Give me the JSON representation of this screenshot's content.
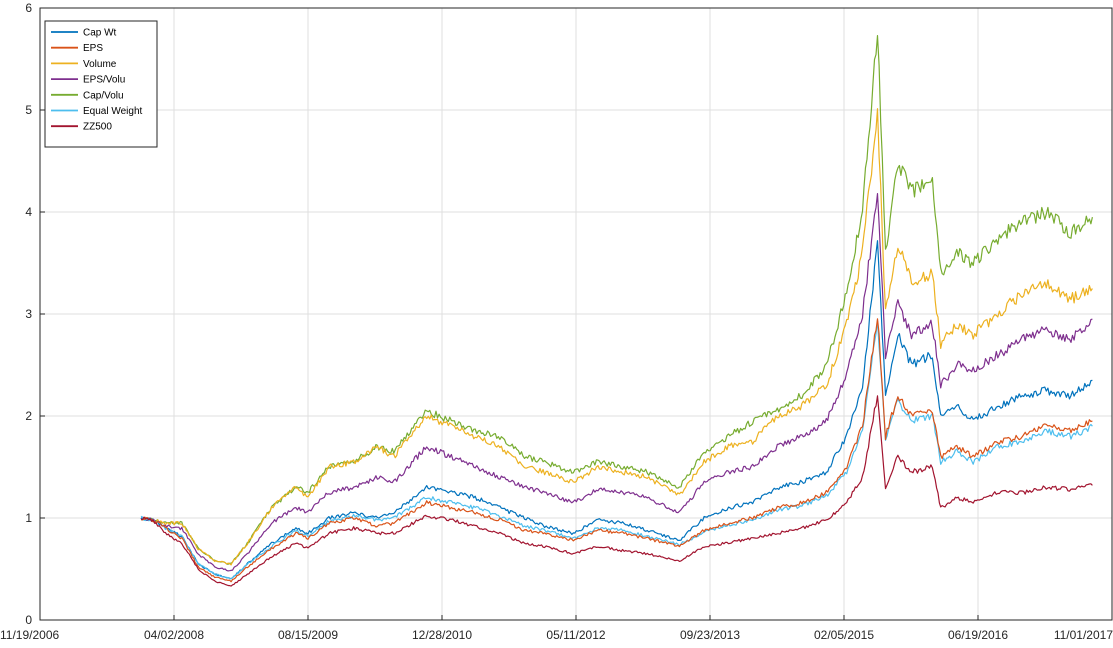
{
  "chart_data": {
    "type": "line",
    "title": "",
    "xlabel": "",
    "ylabel": "",
    "xlim": [
      "2006-11-19",
      "2017-11-01"
    ],
    "ylim": [
      0,
      6
    ],
    "grid": true,
    "legend_position": "top-left",
    "x_tick_labels": [
      "11/19/2006",
      "04/02/2008",
      "08/15/2009",
      "12/28/2010",
      "05/11/2012",
      "09/23/2013",
      "02/05/2015",
      "06/19/2016",
      "11/01/2017"
    ],
    "y_tick_labels": [
      "0",
      "1",
      "2",
      "3",
      "4",
      "5",
      "6"
    ],
    "x": [
      "2007-12-01",
      "2008-01-15",
      "2008-03-01",
      "2008-05-01",
      "2008-07-01",
      "2008-09-01",
      "2008-11-01",
      "2009-01-01",
      "2009-04-01",
      "2009-07-01",
      "2009-08-15",
      "2009-11-01",
      "2010-02-01",
      "2010-05-01",
      "2010-07-01",
      "2010-11-01",
      "2011-02-01",
      "2011-05-01",
      "2011-08-01",
      "2011-11-01",
      "2012-01-15",
      "2012-05-01",
      "2012-08-01",
      "2012-11-01",
      "2013-02-01",
      "2013-06-01",
      "2013-09-01",
      "2013-12-01",
      "2014-03-01",
      "2014-06-01",
      "2014-09-01",
      "2014-12-01",
      "2015-02-15",
      "2015-04-15",
      "2015-06-10",
      "2015-07-10",
      "2015-08-25",
      "2015-10-15",
      "2016-01-01",
      "2016-02-01",
      "2016-04-01",
      "2016-06-01",
      "2016-09-01",
      "2016-12-01",
      "2017-03-01",
      "2017-06-01",
      "2017-08-20"
    ],
    "series": [
      {
        "name": "Cap Wt",
        "color": "#0072BD",
        "values": [
          1.0,
          0.98,
          0.9,
          0.82,
          0.55,
          0.45,
          0.4,
          0.55,
          0.75,
          0.9,
          0.85,
          1.0,
          1.05,
          1.0,
          1.05,
          1.3,
          1.25,
          1.2,
          1.1,
          1.0,
          0.92,
          0.85,
          0.98,
          0.95,
          0.88,
          0.78,
          1.0,
          1.1,
          1.15,
          1.3,
          1.35,
          1.45,
          1.8,
          2.3,
          3.7,
          2.2,
          2.8,
          2.5,
          2.6,
          2.0,
          2.1,
          1.95,
          2.1,
          2.2,
          2.25,
          2.2,
          2.35
        ]
      },
      {
        "name": "EPS",
        "color": "#D95319",
        "values": [
          1.0,
          0.98,
          0.9,
          0.8,
          0.52,
          0.42,
          0.38,
          0.52,
          0.7,
          0.85,
          0.8,
          0.95,
          1.0,
          0.92,
          0.95,
          1.15,
          1.1,
          1.05,
          0.98,
          0.88,
          0.85,
          0.78,
          0.88,
          0.85,
          0.8,
          0.72,
          0.88,
          0.95,
          1.0,
          1.1,
          1.15,
          1.25,
          1.5,
          1.9,
          3.0,
          1.8,
          2.2,
          2.0,
          2.05,
          1.6,
          1.7,
          1.6,
          1.75,
          1.8,
          1.9,
          1.85,
          1.95
        ]
      },
      {
        "name": "Volume",
        "color": "#EDB120",
        "values": [
          1.0,
          0.98,
          0.95,
          0.95,
          0.7,
          0.58,
          0.55,
          0.75,
          1.1,
          1.3,
          1.2,
          1.5,
          1.55,
          1.7,
          1.6,
          2.0,
          1.9,
          1.8,
          1.7,
          1.5,
          1.45,
          1.35,
          1.5,
          1.45,
          1.4,
          1.22,
          1.55,
          1.7,
          1.75,
          2.0,
          2.1,
          2.3,
          2.9,
          3.6,
          5.0,
          3.0,
          3.7,
          3.3,
          3.4,
          2.7,
          2.9,
          2.8,
          3.0,
          3.2,
          3.3,
          3.15,
          3.25
        ]
      },
      {
        "name": "EPS/Volu",
        "color": "#7E2F8E",
        "values": [
          1.0,
          0.98,
          0.92,
          0.9,
          0.65,
          0.52,
          0.48,
          0.65,
          0.95,
          1.1,
          1.05,
          1.25,
          1.3,
          1.4,
          1.35,
          1.7,
          1.6,
          1.5,
          1.4,
          1.3,
          1.25,
          1.15,
          1.28,
          1.25,
          1.2,
          1.05,
          1.35,
          1.45,
          1.5,
          1.7,
          1.8,
          1.95,
          2.4,
          3.0,
          4.2,
          2.6,
          3.1,
          2.8,
          2.9,
          2.3,
          2.5,
          2.45,
          2.6,
          2.75,
          2.85,
          2.75,
          2.95
        ]
      },
      {
        "name": "Cap/Volu",
        "color": "#77AC30",
        "values": [
          1.0,
          0.98,
          0.95,
          0.95,
          0.7,
          0.58,
          0.55,
          0.75,
          1.1,
          1.3,
          1.25,
          1.5,
          1.55,
          1.7,
          1.65,
          2.05,
          1.95,
          1.85,
          1.8,
          1.6,
          1.55,
          1.45,
          1.55,
          1.5,
          1.45,
          1.3,
          1.65,
          1.8,
          1.95,
          2.05,
          2.2,
          2.5,
          3.2,
          4.0,
          5.8,
          3.6,
          4.5,
          4.2,
          4.3,
          3.4,
          3.6,
          3.5,
          3.75,
          3.9,
          4.0,
          3.8,
          3.95
        ]
      },
      {
        "name": "Equal Weight",
        "color": "#4DBEEE",
        "values": [
          1.0,
          0.98,
          0.9,
          0.82,
          0.55,
          0.45,
          0.4,
          0.55,
          0.72,
          0.88,
          0.82,
          0.97,
          1.02,
          0.98,
          1.0,
          1.2,
          1.15,
          1.1,
          1.02,
          0.92,
          0.88,
          0.8,
          0.9,
          0.88,
          0.82,
          0.74,
          0.86,
          0.93,
          0.98,
          1.08,
          1.12,
          1.22,
          1.45,
          1.85,
          2.95,
          1.75,
          2.15,
          1.95,
          2.0,
          1.55,
          1.65,
          1.55,
          1.7,
          1.75,
          1.85,
          1.8,
          1.9
        ]
      },
      {
        "name": "ZZ500",
        "color": "#A2142F",
        "values": [
          1.0,
          0.98,
          0.85,
          0.75,
          0.5,
          0.38,
          0.33,
          0.45,
          0.62,
          0.75,
          0.7,
          0.85,
          0.9,
          0.85,
          0.85,
          1.02,
          0.98,
          0.92,
          0.85,
          0.75,
          0.72,
          0.65,
          0.72,
          0.68,
          0.65,
          0.58,
          0.72,
          0.76,
          0.8,
          0.85,
          0.9,
          0.98,
          1.15,
          1.4,
          2.2,
          1.3,
          1.6,
          1.45,
          1.5,
          1.1,
          1.2,
          1.15,
          1.25,
          1.25,
          1.3,
          1.28,
          1.32
        ]
      }
    ]
  }
}
